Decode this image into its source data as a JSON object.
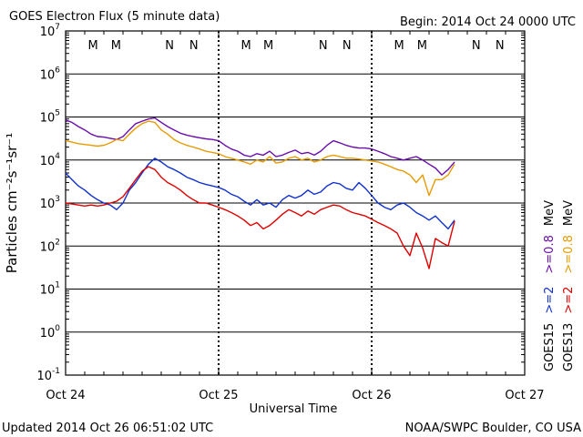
{
  "chart_data": {
    "type": "line",
    "title": "GOES Electron Flux (5 minute data)",
    "begin_label": "Begin: 2014 Oct 24 0000 UTC",
    "xlabel": "Universal Time",
    "ylabel": "Particles cm⁻²s⁻¹sr⁻¹",
    "x_ticks": [
      "Oct 24",
      "Oct 25",
      "Oct 26",
      "Oct 27"
    ],
    "xlim_hours": [
      0,
      72
    ],
    "y_scale": "log",
    "ylim": [
      0.1,
      10000000
    ],
    "y_ticks": [
      {
        "base": "10",
        "exp": "7"
      },
      {
        "base": "10",
        "exp": "6"
      },
      {
        "base": "10",
        "exp": "5"
      },
      {
        "base": "10",
        "exp": "4"
      },
      {
        "base": "10",
        "exp": "3"
      },
      {
        "base": "10",
        "exp": "2"
      },
      {
        "base": "10",
        "exp": "1"
      },
      {
        "base": "10",
        "exp": "0"
      },
      {
        "base": "10",
        "exp": "-1"
      }
    ],
    "reference_line": 1000,
    "mn_markers": [
      {
        "hour": 4.3,
        "letter": "M",
        "color": "#cc0000"
      },
      {
        "hour": 7.9,
        "letter": "M",
        "color": "#0000cc"
      },
      {
        "hour": 16.3,
        "letter": "N",
        "color": "#cc0000"
      },
      {
        "hour": 20.1,
        "letter": "N",
        "color": "#0000cc"
      },
      {
        "hour": 28.3,
        "letter": "M",
        "color": "#cc0000"
      },
      {
        "hour": 31.8,
        "letter": "M",
        "color": "#0000cc"
      },
      {
        "hour": 40.4,
        "letter": "N",
        "color": "#cc0000"
      },
      {
        "hour": 44.1,
        "letter": "N",
        "color": "#0000cc"
      },
      {
        "hour": 52.3,
        "letter": "M",
        "color": "#cc0000"
      },
      {
        "hour": 55.9,
        "letter": "M",
        "color": "#0000cc"
      },
      {
        "hour": 64.4,
        "letter": "N",
        "color": "#cc0000"
      },
      {
        "hour": 68.1,
        "letter": "N",
        "color": "#0000cc"
      }
    ],
    "series": [
      {
        "name": ">=0.8 MeV",
        "satellite": "GOES15",
        "color": "#6a0dad",
        "x": [
          0,
          1,
          2,
          3,
          4,
          5,
          6,
          7,
          8,
          9,
          10,
          11,
          12,
          13,
          14,
          15,
          16,
          17,
          18,
          19,
          20,
          21,
          22,
          23,
          24,
          25,
          26,
          27,
          28,
          29,
          30,
          31,
          32,
          33,
          34,
          35,
          36,
          37,
          38,
          39,
          40,
          41,
          42,
          43,
          44,
          45,
          46,
          47,
          48,
          49,
          50,
          51,
          52,
          53,
          54,
          55,
          56,
          57,
          58,
          59,
          60,
          61
        ],
        "values": [
          85000,
          75000,
          60000,
          50000,
          40000,
          35000,
          34000,
          32000,
          30000,
          35000,
          50000,
          70000,
          80000,
          90000,
          95000,
          75000,
          60000,
          50000,
          42000,
          38000,
          35000,
          33000,
          31000,
          30000,
          28000,
          22000,
          18000,
          16000,
          13000,
          12000,
          14000,
          13000,
          16000,
          12000,
          13000,
          15000,
          17000,
          14000,
          15000,
          13000,
          16000,
          22000,
          28000,
          25000,
          22000,
          20000,
          19000,
          19000,
          18000,
          16000,
          14000,
          12000,
          11000,
          10000,
          11000,
          12000,
          10000,
          8000,
          6500,
          4500,
          6000,
          9000
        ]
      },
      {
        "name": ">=0.8 MeV",
        "satellite": "GOES13",
        "color": "#e89b00",
        "x": [
          0,
          1,
          2,
          3,
          4,
          5,
          6,
          7,
          8,
          9,
          10,
          11,
          12,
          13,
          14,
          15,
          16,
          17,
          18,
          19,
          20,
          21,
          22,
          23,
          24,
          25,
          26,
          27,
          28,
          29,
          30,
          31,
          32,
          33,
          34,
          35,
          36,
          37,
          38,
          39,
          40,
          41,
          42,
          43,
          44,
          45,
          46,
          47,
          48,
          49,
          50,
          51,
          52,
          53,
          54,
          55,
          56,
          57,
          58,
          59,
          60,
          61
        ],
        "values": [
          28000,
          26000,
          24000,
          23000,
          22000,
          21000,
          22000,
          25000,
          30000,
          28000,
          40000,
          55000,
          70000,
          80000,
          75000,
          50000,
          40000,
          30000,
          25000,
          22000,
          20000,
          18000,
          16000,
          15000,
          14000,
          12000,
          11000,
          10000,
          9000,
          8000,
          10000,
          9000,
          12000,
          8500,
          9000,
          11000,
          12000,
          10000,
          11000,
          9000,
          10000,
          12000,
          13000,
          12000,
          11000,
          11000,
          10500,
          10000,
          9500,
          9000,
          8000,
          7000,
          6000,
          5500,
          4500,
          3000,
          4500,
          1500,
          3500,
          3500,
          4500,
          8000
        ]
      },
      {
        "name": ">=2 MeV",
        "satellite": "GOES15",
        "color": "#1030d0",
        "x": [
          0,
          1,
          2,
          3,
          4,
          5,
          6,
          7,
          8,
          9,
          10,
          11,
          12,
          13,
          14,
          15,
          16,
          17,
          18,
          19,
          20,
          21,
          22,
          23,
          24,
          25,
          26,
          27,
          28,
          29,
          30,
          31,
          32,
          33,
          34,
          35,
          36,
          37,
          38,
          39,
          40,
          41,
          42,
          43,
          44,
          45,
          46,
          47,
          48,
          49,
          50,
          51,
          52,
          53,
          54,
          55,
          56,
          57,
          58,
          59,
          60,
          61
        ],
        "values": [
          5000,
          3500,
          2500,
          2000,
          1500,
          1200,
          1000,
          900,
          700,
          1000,
          2000,
          3000,
          5000,
          8000,
          11000,
          9000,
          7000,
          6000,
          5000,
          4000,
          3500,
          3000,
          2700,
          2500,
          2300,
          2000,
          1600,
          1400,
          1100,
          900,
          1200,
          900,
          1000,
          800,
          1200,
          1500,
          1300,
          1500,
          2000,
          1600,
          1800,
          2500,
          3000,
          2800,
          2200,
          2000,
          3000,
          2200,
          1500,
          1000,
          800,
          700,
          900,
          1000,
          800,
          600,
          500,
          400,
          500,
          350,
          250,
          400
        ]
      },
      {
        "name": ">=2 MeV",
        "satellite": "GOES13",
        "color": "#e00000",
        "x": [
          0,
          1,
          2,
          3,
          4,
          5,
          6,
          7,
          8,
          9,
          10,
          11,
          12,
          13,
          14,
          15,
          16,
          17,
          18,
          19,
          20,
          21,
          22,
          23,
          24,
          25,
          26,
          27,
          28,
          29,
          30,
          31,
          32,
          33,
          34,
          35,
          36,
          37,
          38,
          39,
          40,
          41,
          42,
          43,
          44,
          45,
          46,
          47,
          48,
          49,
          50,
          51,
          52,
          53,
          54,
          55,
          56,
          57,
          58,
          59,
          60,
          61
        ],
        "values": [
          1000,
          950,
          900,
          850,
          900,
          850,
          900,
          1000,
          1100,
          1400,
          2200,
          3500,
          5500,
          7000,
          6000,
          4000,
          3000,
          2500,
          2000,
          1500,
          1200,
          1000,
          1000,
          900,
          800,
          700,
          600,
          500,
          400,
          300,
          350,
          250,
          300,
          400,
          550,
          700,
          600,
          500,
          650,
          550,
          700,
          800,
          900,
          850,
          700,
          600,
          550,
          500,
          420,
          350,
          300,
          250,
          200,
          100,
          60,
          200,
          90,
          30,
          150,
          120,
          100,
          380
        ]
      }
    ],
    "legend": [
      {
        "label": "GOES13",
        "color": "#000000"
      },
      {
        "label": ">=2",
        "color": "#e00000"
      },
      {
        "label": ">=0.8",
        "color": "#e89b00"
      },
      {
        "label": "MeV",
        "color": "#000000"
      },
      {
        "label": "GOES15",
        "color": "#000000"
      },
      {
        "label": ">=2",
        "color": "#1030d0"
      },
      {
        "label": ">=0.8",
        "color": "#6a0dad"
      },
      {
        "label": "MeV",
        "color": "#000000"
      }
    ],
    "footer_left": "Updated 2014 Oct 26 06:51:02 UTC",
    "footer_right": "NOAA/SWPC Boulder, CO USA"
  }
}
